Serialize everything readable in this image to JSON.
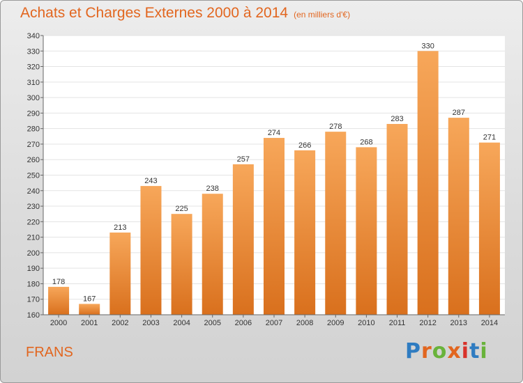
{
  "header": {
    "title": "Achats et Charges Externes 2000 à 2014",
    "subtitle": "(en milliers d'€)"
  },
  "footer": {
    "commune": "FRANS",
    "logo_text": "Proxiti"
  },
  "colors": {
    "accent": "#e2661f",
    "bar_top": "#f7a75a",
    "bar_bottom": "#d9701d",
    "logo_letters": [
      "#2f7cc1",
      "#e2661f",
      "#69b33b",
      "#e2661f",
      "#d8322a",
      "#2f7cc1",
      "#69b33b"
    ]
  },
  "chart_data": {
    "type": "bar",
    "title": "Achats et Charges Externes 2000 à 2014",
    "subtitle": "(en milliers d'€)",
    "categories": [
      "2000",
      "2001",
      "2002",
      "2003",
      "2004",
      "2005",
      "2006",
      "2007",
      "2008",
      "2009",
      "2010",
      "2011",
      "2012",
      "2013",
      "2014"
    ],
    "values": [
      178,
      167,
      213,
      243,
      225,
      238,
      257,
      274,
      266,
      278,
      268,
      283,
      330,
      287,
      271
    ],
    "data_labels": [
      "178",
      "167",
      "213",
      "243",
      "225",
      "238",
      "257",
      "274",
      "266",
      "278",
      "268",
      "283",
      "330",
      "287",
      "271"
    ],
    "ylim": [
      160,
      340
    ],
    "y_ticks": [
      "160",
      "170",
      "180",
      "190",
      "200",
      "210",
      "220",
      "230",
      "240",
      "250",
      "260",
      "270",
      "280",
      "290",
      "300",
      "310",
      "320",
      "330",
      "340"
    ],
    "grid": true,
    "legend": "none"
  }
}
